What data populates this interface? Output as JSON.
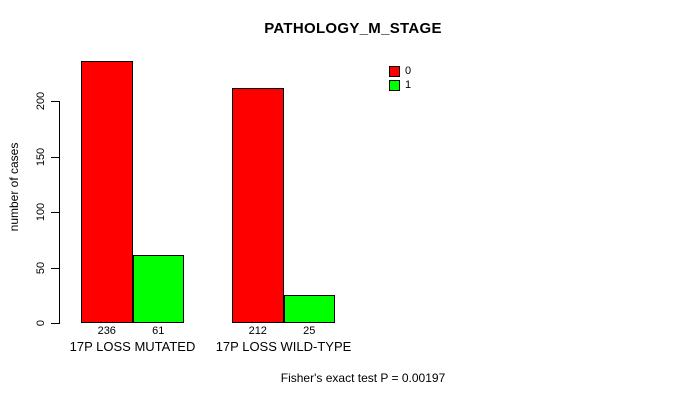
{
  "chart_data": {
    "type": "bar",
    "title": "PATHOLOGY_M_STAGE",
    "ylabel": "number of cases",
    "xlabel": "",
    "categories": [
      "17P LOSS MUTATED",
      "17P LOSS WILD-TYPE"
    ],
    "series": [
      {
        "name": "0",
        "color": "#ff0000",
        "values": [
          236,
          212
        ]
      },
      {
        "name": "1",
        "color": "#00ff00",
        "values": [
          61,
          25
        ]
      }
    ],
    "show_value_labels": true,
    "yticks": [
      0,
      50,
      100,
      150,
      200
    ],
    "ylim": [
      0,
      200
    ],
    "grid": false,
    "legend_position": "top-right",
    "footnote": "Fisher's exact test P = 0.00197",
    "colors": {
      "background": "#ffffff",
      "axis": "#000000",
      "text": "#000000"
    }
  }
}
